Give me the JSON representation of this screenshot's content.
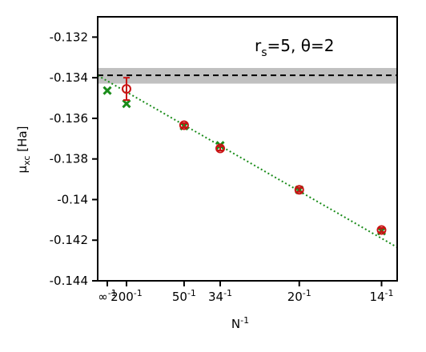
{
  "chart_data": {
    "type": "scatter",
    "annotation": {
      "base": "r",
      "sub": "s",
      "rest": "=5, θ=2"
    },
    "xlabel": {
      "base": "N",
      "sup": "-1"
    },
    "ylabel": {
      "base": "μ",
      "sub": "xc",
      "rest": " [Ha]"
    },
    "xlim": [
      -0.0025,
      0.0755
    ],
    "ylim": [
      -0.144,
      -0.131
    ],
    "x_ticks": [
      {
        "value": 0,
        "base": "∞",
        "sup": "-1"
      },
      {
        "value": 0.005,
        "base": "200",
        "sup": "-1"
      },
      {
        "value": 0.02,
        "base": "50",
        "sup": "-1"
      },
      {
        "value": 0.02941,
        "base": "34",
        "sup": "-1"
      },
      {
        "value": 0.05,
        "base": "20",
        "sup": "-1"
      },
      {
        "value": 0.07143,
        "base": "14",
        "sup": "-1"
      }
    ],
    "y_ticks": [
      {
        "value": -0.132,
        "label": "-0.132"
      },
      {
        "value": -0.134,
        "label": "-0.134"
      },
      {
        "value": -0.136,
        "label": "-0.136"
      },
      {
        "value": -0.138,
        "label": "-0.138"
      },
      {
        "value": -0.14,
        "label": "-0.14"
      },
      {
        "value": -0.142,
        "label": "-0.142"
      },
      {
        "value": -0.144,
        "label": "-0.144"
      }
    ],
    "reference": {
      "value": -0.13388,
      "band": [
        -0.13429,
        -0.13352
      ],
      "line_color": "#000000",
      "band_color": "#c0c0c0"
    },
    "series": [
      {
        "marker": "x",
        "color": "#1a8c1a",
        "points": [
          {
            "x": 0,
            "y": -0.13463
          },
          {
            "x": 0.005,
            "y": -0.13528
          },
          {
            "x": 0.02,
            "y": -0.13638
          },
          {
            "x": 0.02941,
            "y": -0.13733
          },
          {
            "x": 0.05,
            "y": -0.13952
          },
          {
            "x": 0.07143,
            "y": -0.14155
          }
        ]
      },
      {
        "marker": "o",
        "color": "#c81414",
        "points": [
          {
            "x": 0.005,
            "y": -0.13455,
            "err": 0.00055
          },
          {
            "x": 0.02,
            "y": -0.13634,
            "err": 0.0001
          },
          {
            "x": 0.02941,
            "y": -0.13748,
            "err": 0.0001
          },
          {
            "x": 0.05,
            "y": -0.13952,
            "err": 0.0001
          },
          {
            "x": 0.07143,
            "y": -0.1415,
            "err": 0.0001
          }
        ]
      }
    ],
    "fit": {
      "style": "dotted",
      "color": "#1a8c1a",
      "intercept": -0.13416,
      "slope": -0.1085
    }
  }
}
